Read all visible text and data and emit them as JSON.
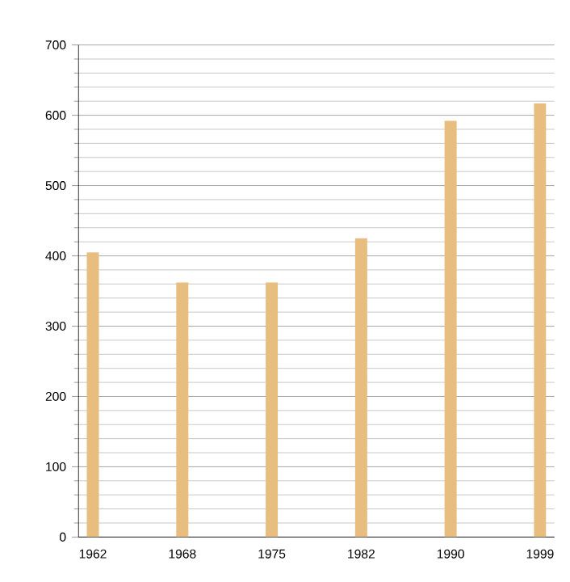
{
  "chart_data": {
    "type": "bar",
    "categories": [
      "1962",
      "1968",
      "1975",
      "1982",
      "1990",
      "1999"
    ],
    "values": [
      405,
      362,
      362,
      425,
      592,
      617
    ],
    "color": "#e8bd80",
    "ylim": [
      0,
      700
    ],
    "yticks": [
      0,
      100,
      200,
      300,
      400,
      500,
      600,
      700
    ],
    "grid": "y"
  }
}
